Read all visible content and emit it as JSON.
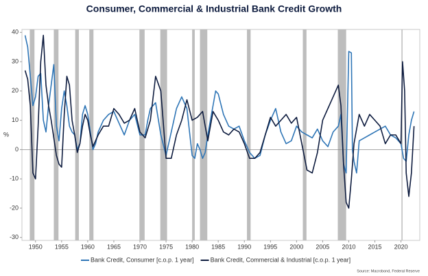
{
  "chart_data": {
    "type": "line",
    "title": "Consumer, Commercial & Industrial Bank Credit Growth",
    "y_label": "%",
    "source": "Source: Macrobond, Federal Reserve",
    "xlim": [
      1947.4,
      2023.6
    ],
    "xticks": [
      1950,
      1955,
      1960,
      1965,
      1970,
      1975,
      1980,
      1985,
      1990,
      1995,
      2000,
      2005,
      2010,
      2015,
      2020
    ],
    "ylim": [
      -31,
      41
    ],
    "yticks": [
      -30,
      -20,
      -10,
      0,
      10,
      20,
      30,
      40
    ],
    "legend": "bottom",
    "shade_color": "#bdbdbd",
    "shaded_periods": [
      [
        1948.9,
        1949.8
      ],
      [
        1953.5,
        1954.4
      ],
      [
        1957.6,
        1958.3
      ],
      [
        1960.3,
        1961.1
      ],
      [
        1969.9,
        1970.9
      ],
      [
        1973.9,
        1975.2
      ],
      [
        1980.0,
        1980.5
      ],
      [
        1981.5,
        1982.9
      ],
      [
        1990.5,
        1991.2
      ],
      [
        2001.2,
        2001.9
      ],
      [
        2007.9,
        2009.5
      ],
      [
        2020.1,
        2020.3
      ]
    ],
    "series": [
      {
        "name": "Bank Credit, Consumer [c.o.p. 1 year]",
        "color": "#2e75b6",
        "x": [
          1948.0,
          1948.5,
          1949.0,
          1949.5,
          1950.0,
          1950.5,
          1951.0,
          1951.5,
          1952.0,
          1952.5,
          1953.0,
          1953.5,
          1954.0,
          1954.5,
          1955.0,
          1955.5,
          1956.0,
          1956.5,
          1957.0,
          1957.5,
          1958.0,
          1958.5,
          1959.0,
          1959.5,
          1960.0,
          1960.5,
          1961.0,
          1961.5,
          1962.0,
          1962.5,
          1963.0,
          1964,
          1965,
          1966,
          1967,
          1968,
          1969,
          1970,
          1971,
          1971.5,
          1972,
          1973,
          1974,
          1975,
          1975.5,
          1976,
          1977,
          1978,
          1979,
          1980,
          1980.5,
          1981,
          1981.5,
          1982,
          1982.5,
          1983,
          1984,
          1984.5,
          1985,
          1986,
          1987,
          1988,
          1989,
          1990,
          1991,
          1992,
          1993,
          1994,
          1995,
          1996,
          1997,
          1998,
          1999,
          2000,
          2001,
          2002,
          2003,
          2004,
          2005,
          2006,
          2007,
          2008,
          2008.5,
          2009,
          2009.5,
          2010,
          2010.5,
          2010.7,
          2011,
          2011.5,
          2012,
          2013,
          2014,
          2015,
          2016,
          2017,
          2018,
          2019,
          2020,
          2020.5,
          2021,
          2021.5,
          2022,
          2022.5
        ],
        "values": [
          39,
          35,
          25,
          15,
          18,
          25,
          26,
          10,
          6,
          15,
          22,
          29,
          8,
          3,
          14,
          20,
          15,
          8,
          6,
          5,
          0,
          2,
          12,
          15,
          12,
          6,
          0,
          2,
          6,
          8,
          10,
          12,
          13,
          9,
          5,
          10,
          12,
          5,
          5,
          10,
          14,
          16,
          5,
          -2,
          2,
          6,
          14,
          18,
          14,
          -2,
          -3,
          2,
          0,
          -3,
          -1,
          5,
          15,
          20,
          19,
          12,
          8,
          7,
          8,
          3,
          -1,
          -3,
          -2,
          5,
          10,
          14,
          6,
          2,
          3,
          8,
          6,
          5,
          4,
          7,
          3,
          1,
          6,
          8,
          12,
          -5,
          -8,
          33.5,
          33,
          0,
          -4,
          -8,
          3,
          4,
          5,
          6,
          7,
          8,
          5,
          4,
          2,
          -3,
          -4,
          5,
          10,
          13
        ]
      },
      {
        "name": "Bank Credit, Commercial & Industrial [c.o.p. 1 year]",
        "color": "#0d1b3e",
        "x": [
          1948,
          1948.5,
          1949,
          1949.5,
          1950,
          1950.5,
          1951,
          1951.5,
          1952,
          1952.5,
          1953,
          1954,
          1954.5,
          1955,
          1955.5,
          1956,
          1956.5,
          1957,
          1957.5,
          1958,
          1958.5,
          1959,
          1959.5,
          1960,
          1960.5,
          1961,
          1962,
          1963,
          1964,
          1965,
          1966,
          1967,
          1968,
          1969,
          1970,
          1971,
          1972,
          1973,
          1974,
          1975,
          1976,
          1977,
          1978,
          1979,
          1980,
          1981,
          1982,
          1983,
          1984,
          1985,
          1986,
          1987,
          1988,
          1989,
          1990,
          1991,
          1992,
          1993,
          1994,
          1995,
          1996,
          1997,
          1998,
          1999,
          2000,
          2001,
          2002,
          2003,
          2004,
          2005,
          2006,
          2007,
          2008,
          2008.5,
          2009,
          2009.5,
          2010,
          2010.5,
          2011,
          2012,
          2013,
          2014,
          2015,
          2016,
          2017,
          2018,
          2019,
          2020,
          2020.3,
          2020.7,
          2021,
          2021.5,
          2022,
          2022.5
        ],
        "values": [
          27,
          24,
          15,
          -8,
          -10,
          8,
          30,
          39,
          22,
          15,
          10,
          -2,
          -5,
          -6,
          12,
          25,
          22,
          10,
          5,
          -1,
          2,
          8,
          12,
          10,
          5,
          1,
          5,
          8,
          8,
          14,
          12,
          9,
          10,
          14,
          6,
          4,
          10,
          25,
          20,
          -3,
          -3,
          5,
          10,
          17,
          10,
          11,
          13,
          3,
          13,
          10,
          6,
          5,
          7,
          6,
          2,
          -3,
          -3,
          -1,
          5,
          11,
          8,
          10,
          12,
          9,
          11,
          2,
          -7,
          -8,
          -1,
          10,
          14,
          18,
          22,
          15,
          -5,
          -18,
          -20,
          -10,
          2,
          12,
          8,
          12,
          10,
          8,
          2,
          5,
          5,
          2,
          30,
          20,
          -8,
          -16,
          -8,
          8
        ]
      }
    ]
  }
}
